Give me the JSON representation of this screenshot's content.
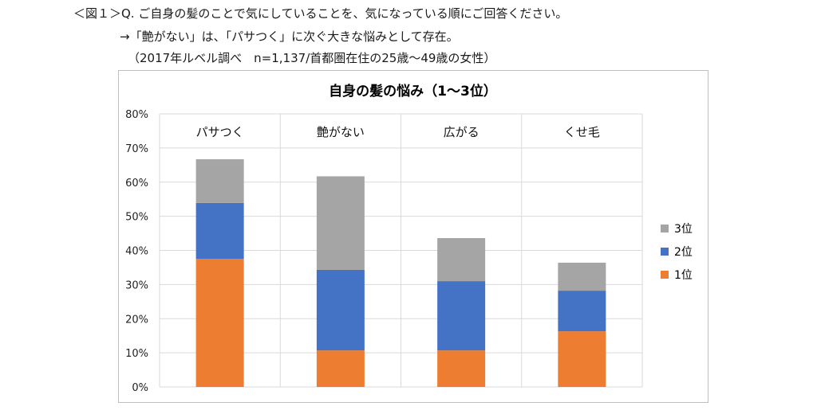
{
  "header": {
    "line1": "＜図１＞Q. ご自身の髪のことで気にしていることを、気になっている順にご回答ください。",
    "line2": "→「艶がない」は、「パサつく」に次ぐ大きな悩みとして存在。",
    "line3": "（2017年ルベル調べ　n=1,137/首都圏在住の25歳～49歳の女性）"
  },
  "chart_data": {
    "type": "bar",
    "stacked": true,
    "title": "自身の髪の悩み（1～3位）",
    "categories": [
      "パサつく",
      "艶がない",
      "広がる",
      "くせ毛"
    ],
    "series": [
      {
        "name": "1位",
        "color": "#ed7d31",
        "values": [
          37.5,
          10.7,
          10.7,
          16.3
        ]
      },
      {
        "name": "2位",
        "color": "#4472c4",
        "values": [
          16.4,
          23.6,
          20.3,
          11.9
        ]
      },
      {
        "name": "3位",
        "color": "#a5a5a5",
        "values": [
          12.8,
          27.4,
          12.6,
          8.2
        ]
      }
    ],
    "ylim": [
      0,
      80
    ],
    "yticks": [
      "0%",
      "10%",
      "20%",
      "30%",
      "40%",
      "50%",
      "60%",
      "70%",
      "80%"
    ],
    "grid": true,
    "legend_position": "right",
    "legend_order": [
      "3位",
      "2位",
      "1位"
    ]
  }
}
